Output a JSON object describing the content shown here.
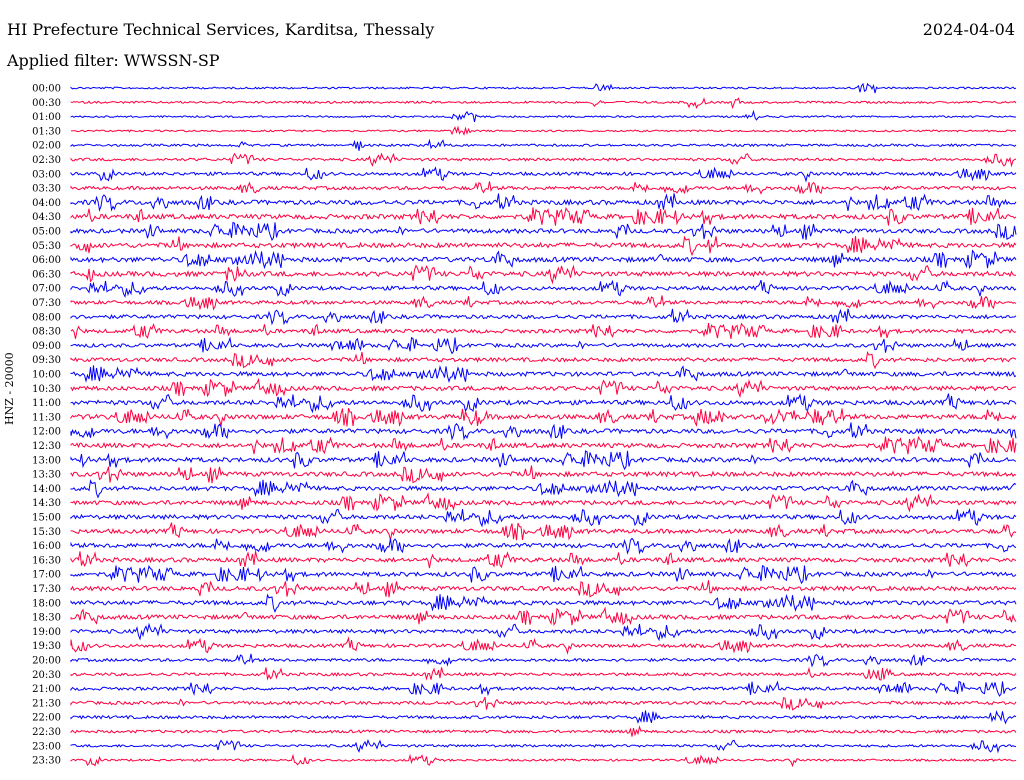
{
  "header": {
    "title": "HI Prefecture Technical Services, Karditsa, Thessaly",
    "date": "2024-04-04",
    "filter": "Applied filter: WWSSN-SP"
  },
  "chart_data": {
    "type": "line",
    "title": "HI Prefecture Technical Services, Karditsa, Thessaly",
    "ylabel": "HNZ - 20000",
    "colors": [
      "#0000ff",
      "#ff0040"
    ],
    "grid": false,
    "rows": [
      "00:00",
      "00:30",
      "01:00",
      "01:30",
      "02:00",
      "02:30",
      "03:00",
      "03:30",
      "04:00",
      "04:30",
      "05:00",
      "05:30",
      "06:00",
      "06:30",
      "07:00",
      "07:30",
      "08:00",
      "08:30",
      "09:00",
      "09:30",
      "10:00",
      "10:30",
      "11:00",
      "11:30",
      "12:00",
      "12:30",
      "13:00",
      "13:30",
      "14:00",
      "14:30",
      "15:00",
      "15:30",
      "16:00",
      "16:30",
      "17:00",
      "17:30",
      "18:00",
      "18:30",
      "19:00",
      "19:30",
      "20:00",
      "20:30",
      "21:00",
      "21:30",
      "22:00",
      "22:30",
      "23:00",
      "23:30"
    ],
    "activity": [
      0.15,
      0.2,
      0.12,
      0.12,
      0.25,
      0.35,
      0.45,
      0.5,
      0.75,
      0.8,
      0.7,
      0.8,
      0.8,
      0.8,
      0.6,
      0.55,
      0.6,
      0.6,
      0.55,
      0.6,
      0.7,
      0.7,
      0.75,
      0.8,
      0.75,
      0.75,
      0.75,
      0.75,
      0.7,
      0.7,
      0.7,
      0.7,
      0.7,
      0.7,
      0.7,
      0.7,
      0.7,
      0.7,
      0.6,
      0.5,
      0.4,
      0.4,
      0.45,
      0.45,
      0.4,
      0.35,
      0.3,
      0.2
    ]
  }
}
